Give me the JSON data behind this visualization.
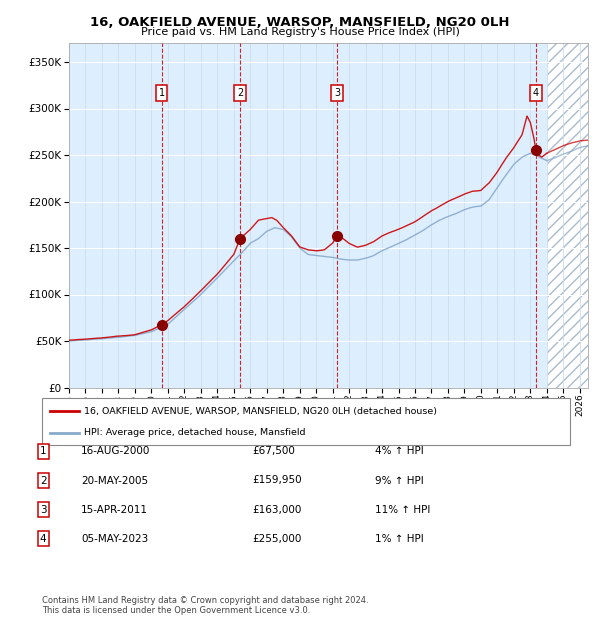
{
  "title": "16, OAKFIELD AVENUE, WARSOP, MANSFIELD, NG20 0LH",
  "subtitle": "Price paid vs. HM Land Registry's House Price Index (HPI)",
  "xlim_start": 1995.0,
  "xlim_end": 2026.5,
  "ylim": [
    0,
    370000
  ],
  "yticks": [
    0,
    50000,
    100000,
    150000,
    200000,
    250000,
    300000,
    350000
  ],
  "xticks": [
    1995,
    1996,
    1997,
    1998,
    1999,
    2000,
    2001,
    2002,
    2003,
    2004,
    2005,
    2006,
    2007,
    2008,
    2009,
    2010,
    2011,
    2012,
    2013,
    2014,
    2015,
    2016,
    2017,
    2018,
    2019,
    2020,
    2021,
    2022,
    2023,
    2024,
    2025,
    2026
  ],
  "sales": [
    {
      "date_year": 2000.62,
      "price": 67500,
      "label": "1"
    },
    {
      "date_year": 2005.38,
      "price": 159950,
      "label": "2"
    },
    {
      "date_year": 2011.28,
      "price": 163000,
      "label": "3"
    },
    {
      "date_year": 2023.34,
      "price": 255000,
      "label": "4"
    }
  ],
  "property_line_color": "#cc0000",
  "hpi_line_color": "#88aacc",
  "plot_bg_color": "#ddeeff",
  "sale_marker_color": "#880000",
  "vline_color": "#cc0000",
  "legend_property_label": "16, OAKFIELD AVENUE, WARSOP, MANSFIELD, NG20 0LH (detached house)",
  "legend_hpi_label": "HPI: Average price, detached house, Mansfield",
  "table_rows": [
    {
      "num": "1",
      "date": "16-AUG-2000",
      "price": "£67,500",
      "pct": "4% ↑ HPI"
    },
    {
      "num": "2",
      "date": "20-MAY-2005",
      "price": "£159,950",
      "pct": "9% ↑ HPI"
    },
    {
      "num": "3",
      "date": "15-APR-2011",
      "price": "£163,000",
      "pct": "11% ↑ HPI"
    },
    {
      "num": "4",
      "date": "05-MAY-2023",
      "price": "£255,000",
      "pct": "1% ↑ HPI"
    }
  ],
  "footnote": "Contains HM Land Registry data © Crown copyright and database right 2024.\nThis data is licensed under the Open Government Licence v3.0.",
  "future_hatch_start": 2024.0,
  "hpi_anchors": [
    [
      1995.0,
      50000
    ],
    [
      1996.0,
      51000
    ],
    [
      1997.0,
      52500
    ],
    [
      1998.0,
      54000
    ],
    [
      1999.0,
      56000
    ],
    [
      2000.0,
      60000
    ],
    [
      2001.0,
      68000
    ],
    [
      2002.0,
      84000
    ],
    [
      2003.0,
      100000
    ],
    [
      2004.0,
      118000
    ],
    [
      2005.0,
      136000
    ],
    [
      2005.5,
      145000
    ],
    [
      2006.0,
      155000
    ],
    [
      2006.5,
      160000
    ],
    [
      2007.0,
      168000
    ],
    [
      2007.5,
      172000
    ],
    [
      2008.0,
      170000
    ],
    [
      2008.5,
      162000
    ],
    [
      2009.0,
      150000
    ],
    [
      2009.5,
      143000
    ],
    [
      2010.0,
      142000
    ],
    [
      2010.5,
      141000
    ],
    [
      2011.0,
      140000
    ],
    [
      2011.5,
      138000
    ],
    [
      2012.0,
      137000
    ],
    [
      2012.5,
      137000
    ],
    [
      2013.0,
      139000
    ],
    [
      2013.5,
      142000
    ],
    [
      2014.0,
      147000
    ],
    [
      2014.5,
      151000
    ],
    [
      2015.0,
      155000
    ],
    [
      2015.5,
      159000
    ],
    [
      2016.0,
      164000
    ],
    [
      2016.5,
      169000
    ],
    [
      2017.0,
      175000
    ],
    [
      2017.5,
      180000
    ],
    [
      2018.0,
      184000
    ],
    [
      2018.5,
      187000
    ],
    [
      2019.0,
      191000
    ],
    [
      2019.5,
      194000
    ],
    [
      2020.0,
      195000
    ],
    [
      2020.5,
      202000
    ],
    [
      2021.0,
      215000
    ],
    [
      2021.5,
      228000
    ],
    [
      2022.0,
      240000
    ],
    [
      2022.5,
      248000
    ],
    [
      2023.0,
      252000
    ],
    [
      2023.34,
      250000
    ],
    [
      2023.5,
      248000
    ],
    [
      2024.0,
      244000
    ],
    [
      2024.5,
      247000
    ],
    [
      2025.0,
      251000
    ],
    [
      2025.5,
      254000
    ],
    [
      2026.0,
      258000
    ],
    [
      2026.5,
      260000
    ]
  ],
  "prop_anchors": [
    [
      1995.0,
      51000
    ],
    [
      1996.0,
      52000
    ],
    [
      1997.0,
      53500
    ],
    [
      1998.0,
      55000
    ],
    [
      1999.0,
      57000
    ],
    [
      2000.0,
      62000
    ],
    [
      2000.62,
      67500
    ],
    [
      2001.0,
      72000
    ],
    [
      2002.0,
      87000
    ],
    [
      2003.0,
      104000
    ],
    [
      2004.0,
      122000
    ],
    [
      2005.0,
      143000
    ],
    [
      2005.38,
      159950
    ],
    [
      2006.0,
      170000
    ],
    [
      2006.5,
      180000
    ],
    [
      2007.0,
      182000
    ],
    [
      2007.3,
      183000
    ],
    [
      2007.6,
      180000
    ],
    [
      2008.0,
      172000
    ],
    [
      2008.5,
      163000
    ],
    [
      2009.0,
      151000
    ],
    [
      2009.5,
      148000
    ],
    [
      2010.0,
      147000
    ],
    [
      2010.5,
      148000
    ],
    [
      2011.0,
      155000
    ],
    [
      2011.28,
      163000
    ],
    [
      2011.5,
      162000
    ],
    [
      2012.0,
      155000
    ],
    [
      2012.5,
      151000
    ],
    [
      2013.0,
      153000
    ],
    [
      2013.5,
      157000
    ],
    [
      2014.0,
      163000
    ],
    [
      2014.5,
      167000
    ],
    [
      2015.0,
      170000
    ],
    [
      2015.5,
      174000
    ],
    [
      2016.0,
      178000
    ],
    [
      2016.5,
      184000
    ],
    [
      2017.0,
      190000
    ],
    [
      2017.5,
      195000
    ],
    [
      2018.0,
      200000
    ],
    [
      2018.5,
      204000
    ],
    [
      2019.0,
      208000
    ],
    [
      2019.5,
      211000
    ],
    [
      2020.0,
      212000
    ],
    [
      2020.5,
      220000
    ],
    [
      2021.0,
      232000
    ],
    [
      2021.5,
      246000
    ],
    [
      2022.0,
      258000
    ],
    [
      2022.5,
      272000
    ],
    [
      2022.8,
      292000
    ],
    [
      2023.0,
      285000
    ],
    [
      2023.2,
      270000
    ],
    [
      2023.34,
      255000
    ],
    [
      2023.5,
      250000
    ],
    [
      2023.7,
      248000
    ],
    [
      2024.0,
      252000
    ],
    [
      2024.5,
      256000
    ],
    [
      2025.0,
      260000
    ],
    [
      2025.5,
      263000
    ],
    [
      2026.0,
      265000
    ],
    [
      2026.5,
      266000
    ]
  ]
}
